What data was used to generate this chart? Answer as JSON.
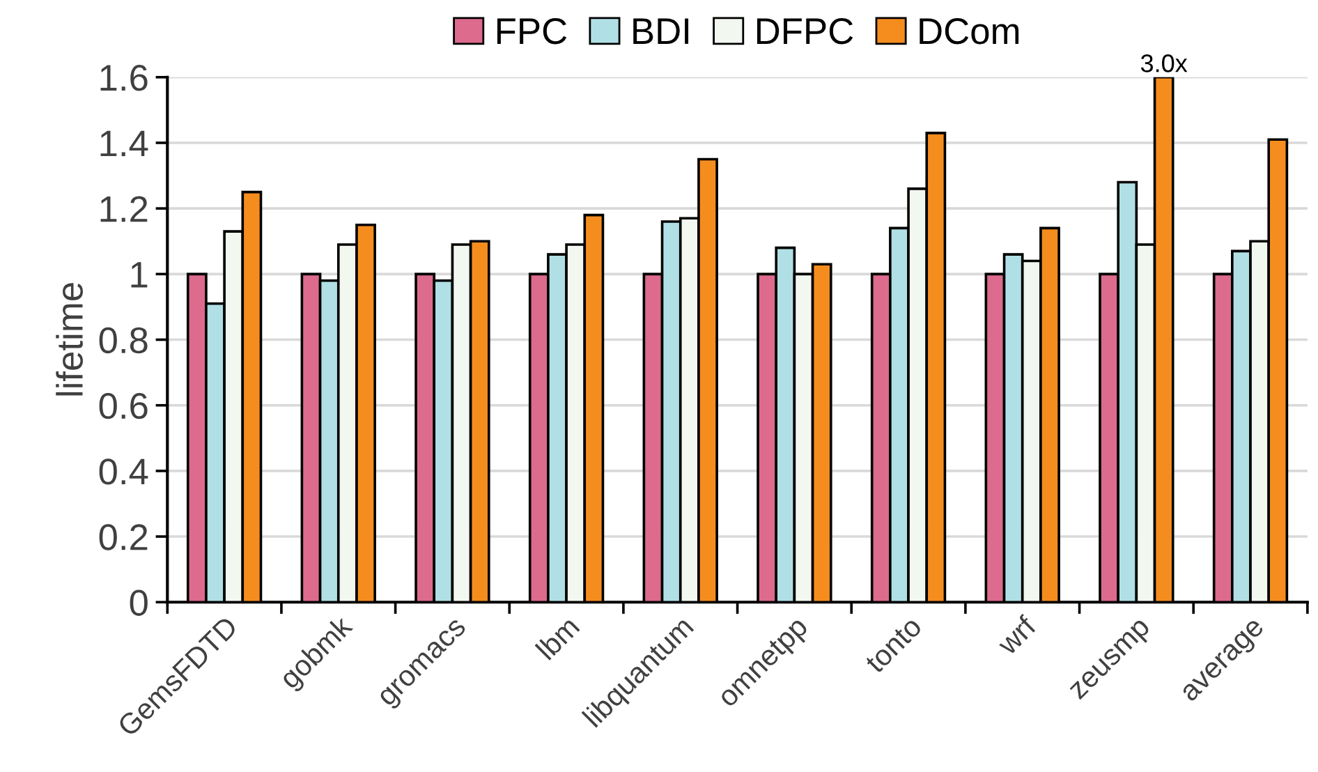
{
  "chart_data": {
    "type": "bar",
    "ylabel": "lifetime",
    "categories": [
      "GemsFDTD",
      "gobmk",
      "gromacs",
      "lbm",
      "libquantum",
      "omnetpp",
      "tonto",
      "wrf",
      "zeusmp",
      "average"
    ],
    "series": [
      {
        "name": "FPC",
        "color": "#dc6b8e",
        "values": [
          1,
          1,
          1,
          1,
          1,
          1,
          1,
          1,
          1,
          1
        ]
      },
      {
        "name": "BDI",
        "color": "#b0e0e6",
        "values": [
          0.91,
          0.98,
          0.98,
          1.06,
          1.16,
          1.08,
          1.14,
          1.06,
          1.28,
          1.07
        ]
      },
      {
        "name": "DFPC",
        "color": "#f2f7ef",
        "values": [
          1.13,
          1.09,
          1.09,
          1.09,
          1.17,
          1.0,
          1.26,
          1.04,
          1.09,
          1.1
        ]
      },
      {
        "name": "DCom",
        "color": "#f58d1e",
        "values": [
          1.25,
          1.15,
          1.1,
          1.18,
          1.35,
          1.03,
          1.43,
          1.14,
          1.6,
          1.41
        ]
      }
    ],
    "annotations": [
      "3.0x"
    ],
    "ylim": [
      0,
      1.6
    ],
    "yticks": [
      0,
      0.2,
      0.4,
      0.6,
      0.8,
      1,
      1.2,
      1.4,
      1.6
    ],
    "grid": "y",
    "legend": "top"
  }
}
